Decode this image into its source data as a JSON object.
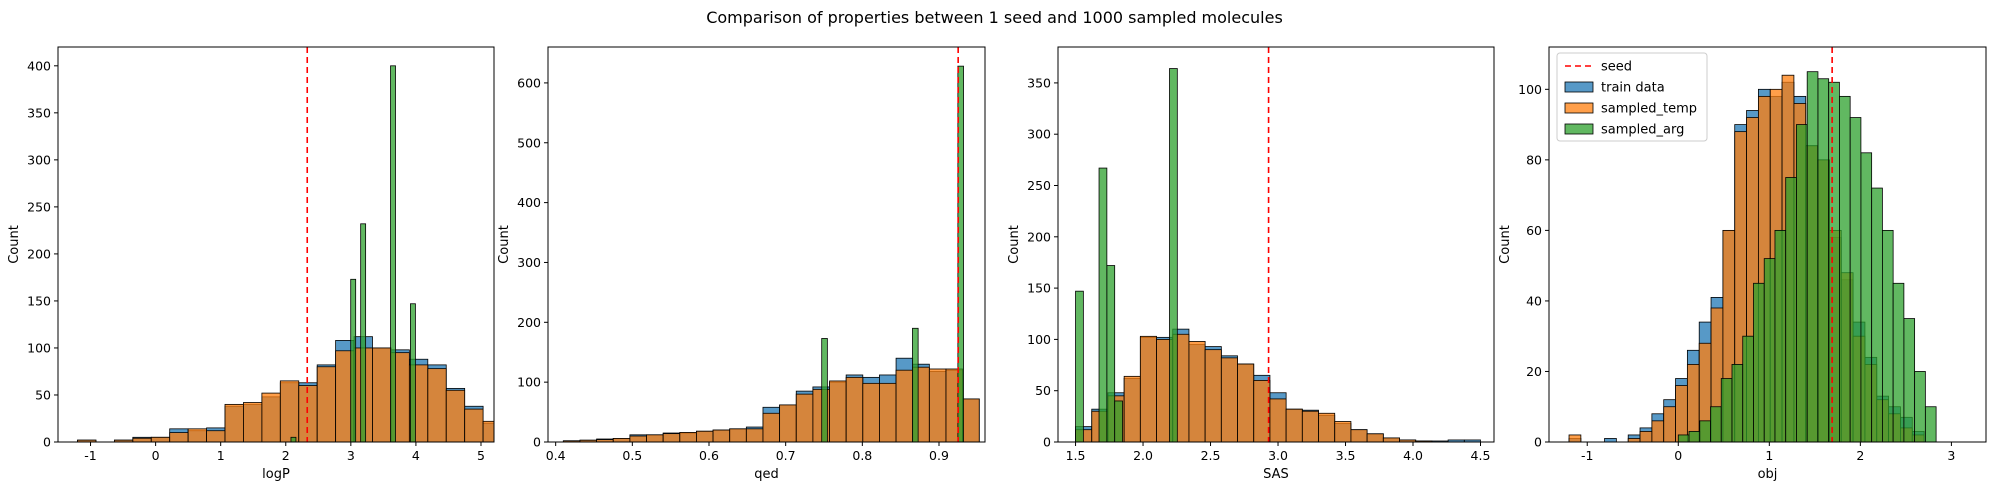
{
  "title": "Comparison of properties between 1 seed and 1000 sampled molecules",
  "colors": {
    "train": "#1f77b4",
    "temp": "#ff7f0e",
    "arg": "#2ca02c",
    "seed": "#ff0000"
  },
  "legend": {
    "placement": "top-left",
    "entries": [
      {
        "label": "seed",
        "style": "dashed-line",
        "color": "#ff0000"
      },
      {
        "label": "train data",
        "style": "patch",
        "color": "#1f77b4"
      },
      {
        "label": "sampled_temp",
        "style": "patch",
        "color": "#ff7f0e"
      },
      {
        "label": "sampled_arg",
        "style": "patch",
        "color": "#2ca02c"
      }
    ]
  },
  "chart_data": [
    {
      "type": "histogram",
      "xlabel": "logP",
      "ylabel": "Count",
      "xlim": [
        -1.5,
        5.2
      ],
      "ylim": [
        0,
        420
      ],
      "xticks": [
        -1,
        0,
        1,
        2,
        3,
        4,
        5
      ],
      "yticks": [
        0,
        50,
        100,
        150,
        200,
        250,
        300,
        350,
        400
      ],
      "grid": false,
      "seed": 2.33,
      "series": [
        {
          "name": "train data",
          "color_key": "train",
          "bin_start": -1.2,
          "bin_width": 0.2833,
          "counts": [
            2,
            0,
            2,
            5,
            5,
            14,
            12,
            15,
            38,
            40,
            48,
            63,
            63,
            82,
            108,
            112,
            100,
            98,
            88,
            82,
            57,
            38,
            20,
            8,
            2
          ]
        },
        {
          "name": "sampled_temp",
          "color_key": "temp",
          "bin_start": -1.2,
          "bin_width": 0.2833,
          "counts": [
            2,
            0,
            2,
            4,
            5,
            10,
            14,
            12,
            40,
            42,
            52,
            65,
            60,
            80,
            97,
            100,
            100,
            95,
            82,
            78,
            55,
            35,
            22,
            10,
            3
          ]
        },
        {
          "name": "sampled_arg",
          "color_key": "arg",
          "bin_start": 2.08,
          "bin_width": 0.0765,
          "counts": [
            5,
            0,
            0,
            0,
            0,
            0,
            0,
            0,
            0,
            0,
            0,
            0,
            173,
            0,
            232,
            0,
            0,
            0,
            0,
            0,
            400,
            0,
            0,
            0,
            147
          ]
        }
      ]
    },
    {
      "type": "histogram",
      "xlabel": "qed",
      "ylabel": "Count",
      "xlim": [
        0.39,
        0.96
      ],
      "ylim": [
        0,
        660
      ],
      "xticks": [
        0.4,
        0.5,
        0.6,
        0.7,
        0.8,
        0.9
      ],
      "yticks": [
        0,
        100,
        200,
        300,
        400,
        500,
        600
      ],
      "grid": false,
      "seed": 0.925,
      "series": [
        {
          "name": "train data",
          "color_key": "train",
          "bin_start": 0.41,
          "bin_width": 0.0217,
          "counts": [
            2,
            3,
            5,
            6,
            12,
            12,
            15,
            15,
            18,
            20,
            22,
            25,
            58,
            62,
            85,
            92,
            100,
            112,
            108,
            112,
            140,
            130,
            118,
            120,
            72
          ]
        },
        {
          "name": "sampled_temp",
          "color_key": "temp",
          "bin_start": 0.41,
          "bin_width": 0.0217,
          "counts": [
            2,
            3,
            4,
            6,
            10,
            12,
            14,
            16,
            18,
            20,
            22,
            22,
            48,
            62,
            80,
            88,
            102,
            108,
            98,
            98,
            120,
            125,
            122,
            122,
            72
          ]
        },
        {
          "name": "sampled_arg",
          "color_key": "arg",
          "bin_start": 0.747,
          "bin_width": 0.0074,
          "counts": [
            173,
            0,
            0,
            0,
            0,
            0,
            0,
            0,
            0,
            0,
            0,
            0,
            0,
            0,
            0,
            0,
            190,
            0,
            0,
            0,
            0,
            0,
            0,
            0,
            628
          ]
        }
      ]
    },
    {
      "type": "histogram",
      "xlabel": "SAS",
      "ylabel": "Count",
      "xlim": [
        1.37,
        4.6
      ],
      "ylim": [
        0,
        385
      ],
      "xticks": [
        1.5,
        2.0,
        2.5,
        3.0,
        3.5,
        4.0,
        4.5
      ],
      "yticks": [
        0,
        50,
        100,
        150,
        200,
        250,
        300,
        350
      ],
      "grid": false,
      "seed": 2.93,
      "series": [
        {
          "name": "train data",
          "color_key": "train",
          "bin_start": 1.5,
          "bin_width": 0.12,
          "counts": [
            15,
            32,
            48,
            62,
            102,
            102,
            110,
            95,
            93,
            84,
            76,
            65,
            48,
            32,
            31,
            26,
            18,
            12,
            8,
            4,
            2,
            1,
            1,
            2,
            2
          ]
        },
        {
          "name": "sampled_temp",
          "color_key": "temp",
          "bin_start": 1.5,
          "bin_width": 0.12,
          "counts": [
            12,
            30,
            45,
            64,
            103,
            100,
            105,
            98,
            90,
            82,
            76,
            60,
            42,
            32,
            30,
            28,
            20,
            12,
            8,
            4,
            2,
            1,
            0,
            0,
            0
          ]
        },
        {
          "name": "sampled_arg",
          "color_key": "arg",
          "bin_start": 1.5,
          "bin_width": 0.058,
          "counts": [
            147,
            0,
            0,
            267,
            172,
            40,
            0,
            0,
            0,
            0,
            0,
            0,
            364
          ]
        }
      ]
    },
    {
      "type": "histogram",
      "xlabel": "obj",
      "ylabel": "Count",
      "xlim": [
        -1.42,
        3.38
      ],
      "ylim": [
        0,
        112
      ],
      "xticks": [
        -1,
        0,
        1,
        2,
        3
      ],
      "yticks": [
        0,
        20,
        40,
        60,
        80,
        100
      ],
      "grid": false,
      "seed": 1.69,
      "series": [
        {
          "name": "train data",
          "color_key": "train",
          "bin_start": -1.2,
          "bin_width": 0.13,
          "counts": [
            1,
            0,
            0,
            1,
            0,
            2,
            4,
            8,
            12,
            18,
            26,
            34,
            41,
            60,
            90,
            94,
            100,
            98,
            102,
            98,
            84,
            80,
            58,
            46,
            34,
            24,
            13,
            10,
            7,
            3
          ]
        },
        {
          "name": "sampled_temp",
          "color_key": "temp",
          "bin_start": -1.2,
          "bin_width": 0.13,
          "counts": [
            2,
            0,
            0,
            0,
            0,
            1,
            3,
            6,
            10,
            16,
            22,
            28,
            38,
            60,
            88,
            92,
            98,
            100,
            104,
            96,
            84,
            80,
            60,
            48,
            30,
            22,
            12,
            8,
            4,
            2
          ]
        },
        {
          "name": "sampled_arg",
          "color_key": "arg",
          "bin_start": 0.0,
          "bin_width": 0.118,
          "counts": [
            2,
            3,
            6,
            10,
            18,
            22,
            30,
            45,
            52,
            60,
            75,
            90,
            105,
            103,
            102,
            98,
            92,
            82,
            72,
            60,
            45,
            35,
            20,
            10
          ]
        }
      ]
    }
  ]
}
